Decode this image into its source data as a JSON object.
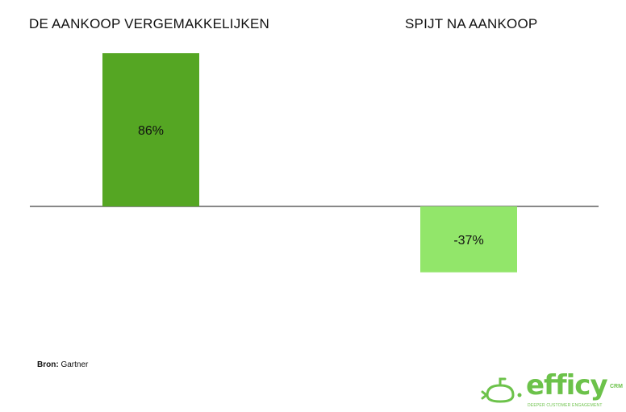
{
  "chart_data": {
    "type": "bar",
    "categories": [
      "DE AANKOOP VERGEMAKKELIJKEN",
      "SPIJT NA AANKOOP"
    ],
    "values": [
      86,
      -37
    ],
    "value_labels": [
      "86%",
      "-37%"
    ],
    "colors": [
      "#55a623",
      "#92e66a"
    ],
    "ylim": [
      -100,
      100
    ],
    "grid": false,
    "zero_line": true
  },
  "source": {
    "label": "Bron:",
    "text": "Gartner"
  },
  "logo": {
    "word": "efficy",
    "sup": "CRM",
    "tagline": "DEEPER CUSTOMER ENGAGEMENT",
    "color": "#6cc24a"
  }
}
